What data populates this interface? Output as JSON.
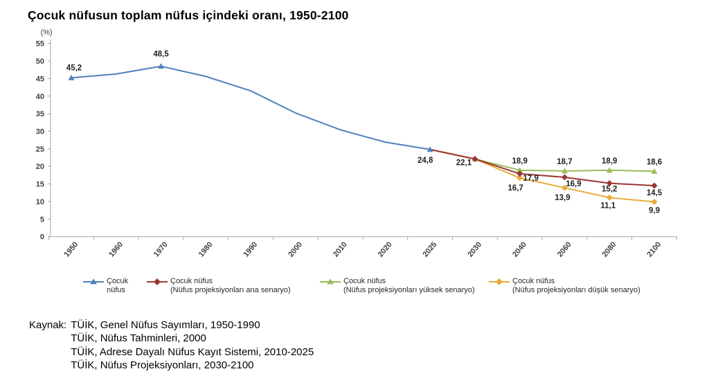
{
  "title": "Çocuk nüfusun toplam nüfus içindeki oranı, 1950-2100",
  "chart_data": {
    "type": "line",
    "title": "Çocuk nüfusun toplam nüfus içindeki oranı, 1950-2100",
    "unit_label": "(%)",
    "xlabel": "",
    "ylabel": "(%)",
    "ylim": [
      0,
      55
    ],
    "ytick_step": 5,
    "grid": false,
    "legend_position": "bottom",
    "categories": [
      "1950",
      "1960",
      "1970",
      "1980",
      "1990",
      "2000",
      "2010",
      "2020",
      "2025",
      "2030",
      "2040",
      "2060",
      "2080",
      "2100"
    ],
    "series": [
      {
        "name": "Çocuk nüfus",
        "legend_lines": [
          "Çocuk",
          "nüfus"
        ],
        "color": "#4f81bd",
        "marker": "triangle",
        "points": [
          {
            "x": "1950",
            "y": 45.2,
            "label": "45,2",
            "label_pos": [
              4,
              -11
            ],
            "marker": true
          },
          {
            "x": "1960",
            "y": 46.3
          },
          {
            "x": "1970",
            "y": 48.5,
            "label": "48,5",
            "label_pos": [
              0,
              -14
            ],
            "marker": true
          },
          {
            "x": "1980",
            "y": 45.6
          },
          {
            "x": "1990",
            "y": 41.5
          },
          {
            "x": "2000",
            "y": 35.2
          },
          {
            "x": "2010",
            "y": 30.4
          },
          {
            "x": "2020",
            "y": 26.9
          },
          {
            "x": "2025",
            "y": 24.8,
            "label": "24,8",
            "label_pos": [
              -7,
              19
            ],
            "marker": true
          }
        ]
      },
      {
        "name": "Çocuk nüfus (Nüfus projeksiyonları ana senaryo)",
        "legend_lines": [
          "Çocuk nüfus",
          "(Nüfus projeksiyonları ana senaryo)"
        ],
        "color": "#9a3634",
        "marker": "diamond",
        "points": [
          {
            "x": "2025",
            "y": 24.8
          },
          {
            "x": "2030",
            "y": 22.1,
            "label": "22,1",
            "label_pos": [
              -16,
              9
            ],
            "marker": true
          },
          {
            "x": "2040",
            "y": 17.9,
            "label": "17,9",
            "label_pos": [
              16,
              10
            ],
            "marker": true
          },
          {
            "x": "2060",
            "y": 16.9,
            "label": "16,9",
            "label_pos": [
              13,
              13
            ],
            "marker": true
          },
          {
            "x": "2080",
            "y": 15.2,
            "label": "15,2",
            "label_pos": [
              0,
              12
            ],
            "marker": true
          },
          {
            "x": "2100",
            "y": 14.5,
            "label": "14,5",
            "label_pos": [
              0,
              14
            ],
            "marker": true
          }
        ]
      },
      {
        "name": "Çocuk nüfus (Nüfus projeksiyonları yüksek senaryo)",
        "legend_lines": [
          "Çocuk nüfus",
          "(Nüfus projeksiyonları yüksek senaryo)"
        ],
        "color": "#9bbb59",
        "marker": "triangle",
        "points": [
          {
            "x": "2025",
            "y": 24.8
          },
          {
            "x": "2030",
            "y": 22.1,
            "marker": true
          },
          {
            "x": "2040",
            "y": 18.9,
            "label": "18,9",
            "label_pos": [
              0,
              -10
            ],
            "marker": true
          },
          {
            "x": "2060",
            "y": 18.7,
            "label": "18,7",
            "label_pos": [
              0,
              -10
            ],
            "marker": true
          },
          {
            "x": "2080",
            "y": 18.9,
            "label": "18,9",
            "label_pos": [
              0,
              -10
            ],
            "marker": true
          },
          {
            "x": "2100",
            "y": 18.6,
            "label": "18,6",
            "label_pos": [
              0,
              -10
            ],
            "marker": true
          }
        ]
      },
      {
        "name": "Çocuk nüfus (Nüfus projeksiyonları düşük senaryo)",
        "legend_lines": [
          "Çocuk nüfus",
          "(Nüfus projeksiyonları düşük senaryo)"
        ],
        "color": "#eaaa3c",
        "marker": "diamond",
        "points": [
          {
            "x": "2025",
            "y": 24.8
          },
          {
            "x": "2030",
            "y": 22.1,
            "marker": true
          },
          {
            "x": "2040",
            "y": 16.7,
            "label": "16,7",
            "label_pos": [
              -6,
              18
            ],
            "marker": true
          },
          {
            "x": "2060",
            "y": 13.9,
            "label": "13,9",
            "label_pos": [
              -3,
              18
            ],
            "marker": true
          },
          {
            "x": "2080",
            "y": 11.1,
            "label": "11,1",
            "label_pos": [
              -2,
              15
            ],
            "marker": true
          },
          {
            "x": "2100",
            "y": 9.9,
            "label": "9,9",
            "label_pos": [
              0,
              16
            ],
            "marker": true
          }
        ]
      }
    ]
  },
  "source": {
    "label": "Kaynak:",
    "lines": [
      "TÜİK, Genel Nüfus Sayımları, 1950-1990",
      "TÜİK, Nüfus Tahminleri, 2000",
      "TÜİK, Adrese Dayalı Nüfus Kayıt Sistemi, 2010-2025",
      "TÜİK, Nüfus Projeksiyonları, 2030-2100"
    ]
  }
}
